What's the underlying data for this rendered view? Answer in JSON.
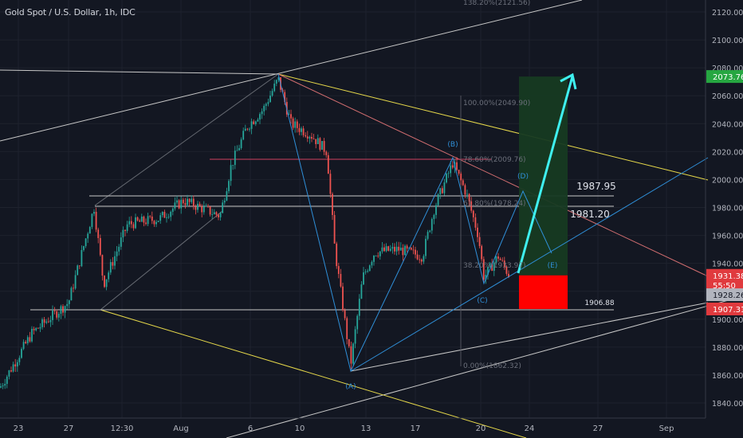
{
  "chart_data": {
    "type": "candlestick",
    "title": "Gold Spot / U.S. Dollar, 1h, IDC",
    "y_axis": {
      "ticks": [
        2120,
        2100,
        2080,
        2060,
        2040,
        2020,
        2000,
        1980,
        1960,
        1940,
        1920,
        1900,
        1880,
        1860,
        1840
      ],
      "tick_labels": [
        "2120.00",
        "2100.00",
        "2080.00",
        "2060.00",
        "2040.00",
        "2020.00",
        "2000.00",
        "1980.00",
        "1960.00",
        "1940.00",
        "1920.00",
        "1900.00",
        "1880.00",
        "1860.00",
        "1840.00"
      ],
      "ylim": [
        1836,
        2128
      ]
    },
    "x_axis": {
      "tick_labels": [
        "23",
        "27",
        "12:30",
        "Aug",
        "6",
        "10",
        "13",
        "17",
        "20",
        "24",
        "27",
        "Sep"
      ]
    },
    "price_path": [
      [
        "23",
        1851
      ],
      [
        "27",
        1912
      ],
      [
        "12:30",
        1968
      ],
      [
        "Aug",
        1976
      ],
      [
        "6",
        2032
      ],
      [
        "10",
        2030
      ],
      [
        "13",
        1895
      ],
      [
        "17",
        1950
      ],
      [
        "20",
        1945
      ]
    ],
    "price_tags": [
      {
        "label": "2073.76",
        "value": 2073.76,
        "color": "#26a641"
      },
      {
        "label": "1931.38",
        "value": 1931.38,
        "color": "#e03a3e"
      },
      {
        "label": "55:50",
        "value": 1924.5,
        "color": "#e03a3e"
      },
      {
        "label": "1928.26",
        "value": 1917.5,
        "color": "#b2b5be"
      },
      {
        "label": "1907.31",
        "value": 1907.31,
        "color": "#e03a3e"
      }
    ],
    "levels": [
      {
        "label": "1987.95",
        "value": 1987.95
      },
      {
        "label": "1981.20",
        "value": 1981.2
      },
      {
        "label": "1906.88",
        "value": 1906.88
      }
    ],
    "fib_labels": [
      {
        "text": "138.20%(2121.56)",
        "value": 2121.56
      },
      {
        "text": "100.00%(2049.90)",
        "value": 2049.9
      },
      {
        "text": "78.60%(2009.76)",
        "value": 2009.76
      },
      {
        "text": "61.80%(1978.24)",
        "value": 1978.24
      },
      {
        "text": "38.20%(1933.97)",
        "value": 1933.97
      },
      {
        "text": "0.00%(1862.32)",
        "value": 1862.32
      }
    ],
    "wave_labels": [
      "(A)",
      "(B)",
      "(C)",
      "(D)",
      "(E)"
    ],
    "position": {
      "entry": 1931.38,
      "target": 2073.76,
      "stop": 1907.31
    },
    "colors": {
      "background": "#131722",
      "grid": "#1e222d",
      "text": "#b2b5be",
      "candle_up": "#26a69a",
      "candle_down": "#ef5350",
      "trend_white": "#c8c8c8",
      "trend_yellow": "#e6d84a",
      "trend_red": "#d36e70",
      "wave_blue": "#2f8fd8",
      "profit_zone": "#163a22",
      "loss_zone": "#ff0000",
      "arrow": "#3ff0f0"
    }
  }
}
